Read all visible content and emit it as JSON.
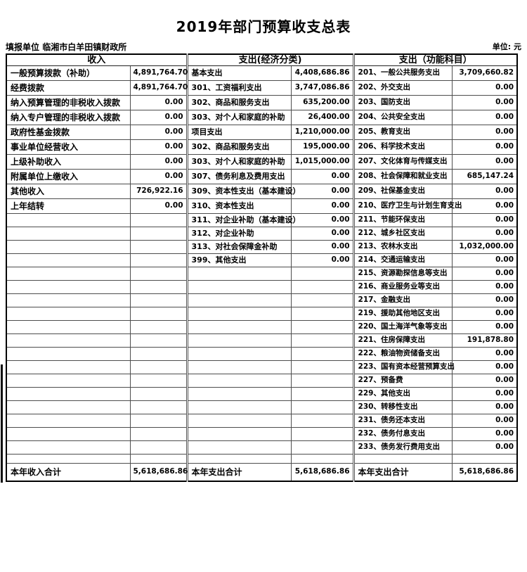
{
  "page": {
    "title": "2019年部门预算收支总表",
    "reporting_unit_label": "填报单位",
    "reporting_unit_value": "临湘市白羊田镇财政所",
    "unit_note": "单位: 元"
  },
  "table": {
    "section_headers": {
      "income": "收入",
      "econ": "支出(经济分类)",
      "func": "支出（功能科目）"
    },
    "rows": [
      {
        "income_label": "一般预算拨款（补助）",
        "income_value": "4,891,764.70",
        "econ_label": "基本支出",
        "econ_value": "4,408,686.86",
        "func_label": "201、一般公共服务支出",
        "func_value": "3,709,660.82"
      },
      {
        "income_label": "经费拨款",
        "income_indent": 1,
        "income_value": "4,891,764.70",
        "econ_label": "301、工资福利支出",
        "econ_indent": 1,
        "econ_value": "3,747,086.86",
        "func_label": "202、外交支出",
        "func_value": "0.00"
      },
      {
        "income_label": "纳入预算管理的非税收入拨款",
        "income_indent": 1,
        "income_value": "0.00",
        "econ_label": "302、商品和服务支出",
        "econ_indent": 1,
        "econ_value": "635,200.00",
        "func_label": "203、国防支出",
        "func_value": "0.00"
      },
      {
        "income_label": "纳入专户管理的非税收入拨款",
        "income_value": "0.00",
        "econ_label": "303、对个人和家庭的补助",
        "econ_indent": 1,
        "econ_value": "26,400.00",
        "func_label": "204、公共安全支出",
        "func_value": "0.00"
      },
      {
        "income_label": "政府性基金拨款",
        "income_value": "0.00",
        "econ_label": "项目支出",
        "econ_value": "1,210,000.00",
        "func_label": "205、教育支出",
        "func_value": "0.00"
      },
      {
        "income_label": "事业单位经营收入",
        "income_value": "0.00",
        "econ_label": "302、商品和服务支出",
        "econ_indent": 1,
        "econ_value": "195,000.00",
        "func_label": "206、科学技术支出",
        "func_value": "0.00"
      },
      {
        "income_label": "上级补助收入",
        "income_value": "0.00",
        "econ_label": "303、对个人和家庭的补助",
        "econ_indent": 1,
        "econ_value": "1,015,000.00",
        "func_label": "207、文化体育与传媒支出",
        "func_value": "0.00"
      },
      {
        "income_label": "附属单位上缴收入",
        "income_value": "0.00",
        "econ_label": "307、债务利息及费用支出",
        "econ_indent": 1,
        "econ_value": "0.00",
        "func_label": "208、社会保障和就业支出",
        "func_value": "685,147.24"
      },
      {
        "income_label": "其他收入",
        "income_value": "726,922.16",
        "econ_label": "309、资本性支出（基本建设）",
        "econ_indent": 1,
        "econ_value": "0.00",
        "func_label": "209、社保基金支出",
        "func_value": "0.00"
      },
      {
        "income_label": "上年结转",
        "income_value": "0.00",
        "econ_label": "310、资本性支出",
        "econ_indent": 1,
        "econ_value": "0.00",
        "func_label": "210、医疗卫生与计划生育支出",
        "func_value": "0.00"
      },
      {
        "econ_label": "311、对企业补助（基本建设）",
        "econ_indent": 1,
        "econ_value": "0.00",
        "func_label": "211、节能环保支出",
        "func_value": "0.00"
      },
      {
        "econ_label": "312、对企业补助",
        "econ_indent": 1,
        "econ_value": "0.00",
        "func_label": "212、城乡社区支出",
        "func_value": "0.00"
      },
      {
        "econ_label": "313、对社会保障金补助",
        "econ_indent": 1,
        "econ_value": "0.00",
        "func_label": "213、农林水支出",
        "func_value": "1,032,000.00"
      },
      {
        "econ_label": "399、其他支出",
        "econ_indent": 1,
        "econ_value": "0.00",
        "func_label": "214、交通运输支出",
        "func_value": "0.00"
      },
      {
        "func_label": "215、资源勘探信息等支出",
        "func_value": "0.00"
      },
      {
        "func_label": "216、商业服务业等支出",
        "func_value": "0.00"
      },
      {
        "func_label": "217、金融支出",
        "func_value": "0.00"
      },
      {
        "func_label": "219、援助其他地区支出",
        "func_value": "0.00"
      },
      {
        "func_label": "220、国土海洋气象等支出",
        "func_value": "0.00"
      },
      {
        "func_label": "221、住房保障支出",
        "func_value": "191,878.80"
      },
      {
        "func_label": "222、粮油物资储备支出",
        "func_value": "0.00"
      },
      {
        "func_label": "223、国有资本经营预算支出",
        "func_value": "0.00"
      },
      {
        "func_label": "227、预备费",
        "func_value": "0.00"
      },
      {
        "func_label": "229、其他支出",
        "func_value": "0.00"
      },
      {
        "func_label": "230、转移性支出",
        "func_value": "0.00"
      },
      {
        "func_label": "231、债务还本支出",
        "func_value": "0.00"
      },
      {
        "func_label": "232、债务付息支出",
        "func_value": "0.00"
      },
      {
        "func_label": "233、债务发行费用支出",
        "func_value": "0.00"
      },
      {}
    ],
    "totals": {
      "income_label": "本年收入合计",
      "income_value": "5,618,686.86",
      "econ_label": "本年支出合计",
      "econ_value": "5,618,686.86",
      "func_label": "本年支出合计",
      "func_value": "5,618,686.86"
    }
  }
}
